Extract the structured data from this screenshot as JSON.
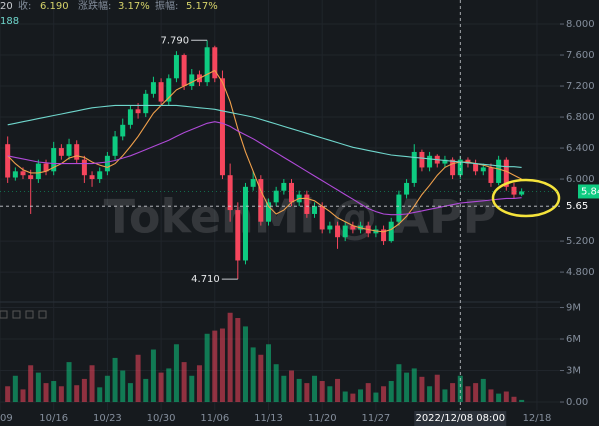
{
  "chart_data": {
    "type": "candlestick",
    "header": [
      "20",
      "收:",
      "6.190",
      "涨跌幅:",
      "3.17%",
      "振幅:",
      "5.17%"
    ],
    "subheader": "188",
    "watermark": "TokenMi @ APP",
    "up_color": "#0ecb81",
    "down_color": "#f6465d",
    "grid": true,
    "xlim": [
      0,
      73
    ],
    "xticks": [
      {
        "value": 0,
        "label": "09"
      },
      {
        "value": 7,
        "label": "10/16"
      },
      {
        "value": 14,
        "label": "10/23"
      },
      {
        "value": 21,
        "label": "10/30"
      },
      {
        "value": 28,
        "label": "11/06"
      },
      {
        "value": 35,
        "label": "11/13"
      },
      {
        "value": 42,
        "label": "11/20"
      },
      {
        "value": 49,
        "label": "11/27"
      },
      {
        "value": 70,
        "label": "12/18"
      }
    ],
    "ylim": [
      4.44,
      8.31
    ],
    "yticks": [
      {
        "value": 8,
        "label": "8.000"
      },
      {
        "value": 7.6,
        "label": "7.600"
      },
      {
        "value": 7.2,
        "label": "7.200"
      },
      {
        "value": 6.8,
        "label": "6.800"
      },
      {
        "value": 6.4,
        "label": "6.400"
      },
      {
        "value": 6,
        "label": "6.000"
      },
      {
        "value": 5.2,
        "label": "5.200"
      },
      {
        "value": 4.8,
        "label": "4.800"
      }
    ],
    "y2lim": [
      -0.76,
      9.24
    ],
    "y2ticks": [
      {
        "value": 9,
        "label": "9M"
      },
      {
        "value": 6,
        "label": "6M"
      },
      {
        "value": 3,
        "label": "3M"
      },
      {
        "value": 0,
        "label": "0.00"
      }
    ],
    "x": [
      1,
      2,
      3,
      4,
      5,
      6,
      7,
      8,
      9,
      10,
      11,
      12,
      13,
      14,
      15,
      16,
      17,
      18,
      19,
      20,
      21,
      22,
      23,
      24,
      25,
      26,
      27,
      28,
      29,
      30,
      31,
      32,
      33,
      34,
      35,
      36,
      37,
      38,
      39,
      40,
      41,
      42,
      43,
      44,
      45,
      46,
      47,
      48,
      49,
      50,
      51,
      52,
      53,
      54,
      55,
      56,
      57,
      58,
      59,
      60,
      61,
      62,
      63,
      64,
      65,
      66,
      67,
      68
    ],
    "open": [
      6.45,
      6.02,
      6.1,
      6.05,
      6.0,
      6.2,
      6.1,
      6.4,
      6.3,
      6.45,
      6.25,
      6.05,
      6.0,
      6.1,
      6.3,
      6.55,
      6.7,
      6.9,
      6.85,
      7.1,
      7.25,
      7.0,
      7.3,
      7.6,
      7.2,
      7.35,
      7.25,
      7.7,
      7.3,
      6.05,
      5.6,
      4.95,
      5.9,
      6.0,
      5.45,
      5.7,
      5.85,
      5.95,
      5.7,
      5.8,
      5.55,
      5.65,
      5.35,
      5.4,
      5.25,
      5.4,
      5.35,
      5.4,
      5.3,
      5.35,
      5.2,
      5.45,
      5.8,
      5.95,
      6.35,
      6.15,
      6.3,
      6.2,
      6.25,
      6.05,
      6.25,
      6.2,
      6.1,
      6.15,
      5.95,
      6.25,
      5.9,
      5.8
    ],
    "high": [
      6.55,
      6.15,
      6.15,
      6.12,
      6.25,
      6.25,
      6.48,
      6.45,
      6.52,
      6.5,
      6.3,
      6.1,
      6.15,
      6.35,
      6.62,
      6.78,
      6.95,
      6.98,
      7.15,
      7.32,
      7.3,
      7.35,
      7.65,
      7.62,
      7.42,
      7.4,
      7.79,
      7.72,
      7.4,
      6.2,
      5.7,
      5.95,
      6.1,
      6.05,
      5.75,
      5.9,
      6.0,
      6.0,
      5.85,
      5.85,
      5.7,
      5.7,
      5.45,
      5.45,
      5.45,
      5.45,
      5.45,
      5.45,
      5.4,
      5.4,
      5.5,
      5.85,
      6.0,
      6.45,
      6.38,
      6.35,
      6.32,
      6.3,
      6.28,
      6.3,
      6.28,
      6.25,
      6.2,
      6.2,
      6.3,
      6.28,
      5.95,
      5.88
    ],
    "low": [
      5.95,
      5.98,
      6.0,
      5.55,
      5.95,
      6.05,
      6.05,
      6.25,
      6.25,
      6.2,
      5.95,
      5.9,
      5.95,
      6.05,
      6.25,
      6.5,
      6.65,
      6.78,
      6.8,
      7.05,
      6.95,
      6.95,
      7.25,
      7.15,
      7.15,
      7.2,
      7.2,
      7.25,
      6.0,
      5.45,
      4.71,
      4.9,
      5.85,
      5.4,
      5.4,
      5.65,
      5.8,
      5.65,
      5.65,
      5.5,
      5.5,
      5.3,
      5.3,
      5.1,
      5.2,
      5.3,
      5.3,
      5.25,
      5.25,
      5.15,
      5.18,
      5.4,
      5.75,
      5.9,
      6.1,
      6.1,
      6.15,
      6.15,
      6.0,
      6.0,
      6.15,
      6.05,
      6.05,
      5.9,
      5.92,
      5.85,
      5.75,
      5.78
    ],
    "close": [
      6.02,
      6.1,
      6.05,
      6.0,
      6.2,
      6.1,
      6.4,
      6.3,
      6.45,
      6.25,
      6.05,
      6.0,
      6.1,
      6.3,
      6.55,
      6.7,
      6.9,
      6.85,
      7.1,
      7.25,
      7.0,
      7.3,
      7.6,
      7.2,
      7.35,
      7.25,
      7.7,
      7.3,
      6.05,
      5.6,
      4.95,
      5.9,
      6.0,
      5.45,
      5.7,
      5.85,
      5.95,
      5.7,
      5.8,
      5.55,
      5.65,
      5.35,
      5.4,
      5.25,
      5.4,
      5.35,
      5.4,
      5.3,
      5.35,
      5.2,
      5.45,
      5.8,
      5.95,
      6.35,
      6.15,
      6.3,
      6.2,
      6.25,
      6.05,
      6.25,
      6.2,
      6.1,
      6.15,
      5.95,
      6.25,
      5.9,
      5.8,
      5.84
    ],
    "volume": [
      1.5,
      2.5,
      1.2,
      3.5,
      2.8,
      1.8,
      2.0,
      1.5,
      3.8,
      1.6,
      2.2,
      3.5,
      1.4,
      2.5,
      4.2,
      3.0,
      1.8,
      4.5,
      2.2,
      5.0,
      2.8,
      3.2,
      5.5,
      3.8,
      2.5,
      3.5,
      6.5,
      6.8,
      7.0,
      8.5,
      8.0,
      7.2,
      5.2,
      4.5,
      5.5,
      3.6,
      2.5,
      3.0,
      2.2,
      1.8,
      2.5,
      2.0,
      1.5,
      2.2,
      1.0,
      0.8,
      1.2,
      1.8,
      0.9,
      1.5,
      2.0,
      3.6,
      2.8,
      3.2,
      2.4,
      1.5,
      2.6,
      1.2,
      1.8,
      2.5,
      1.5,
      1.8,
      2.2,
      1.2,
      0.8,
      1.0,
      0.5,
      0.2
    ],
    "lines": [
      {
        "color": "#f0a04b",
        "values": [
          6.3,
          6.2,
          6.12,
          6.08,
          6.08,
          6.1,
          6.15,
          6.2,
          6.27,
          6.3,
          6.28,
          6.22,
          6.18,
          6.15,
          6.2,
          6.3,
          6.42,
          6.55,
          6.7,
          6.85,
          6.95,
          7.05,
          7.15,
          7.2,
          7.25,
          7.3,
          7.35,
          7.4,
          7.25,
          7.0,
          6.65,
          6.35,
          6.1,
          5.85,
          5.65,
          5.55,
          5.6,
          5.7,
          5.75,
          5.75,
          5.72,
          5.65,
          5.58,
          5.5,
          5.45,
          5.4,
          5.37,
          5.35,
          5.33,
          5.32,
          5.35,
          5.42,
          5.52,
          5.65,
          5.8,
          5.92,
          6.05,
          6.15,
          6.2,
          6.22,
          6.22,
          6.2,
          6.18,
          6.15,
          6.13,
          6.1,
          6.05,
          6.0
        ]
      },
      {
        "color": "#b04ad8",
        "values": [
          6.3,
          6.28,
          6.26,
          6.24,
          6.22,
          6.21,
          6.2,
          6.2,
          6.2,
          6.2,
          6.2,
          6.2,
          6.21,
          6.22,
          6.24,
          6.27,
          6.3,
          6.34,
          6.38,
          6.42,
          6.46,
          6.5,
          6.55,
          6.6,
          6.64,
          6.68,
          6.72,
          6.74,
          6.72,
          6.68,
          6.62,
          6.57,
          6.52,
          6.46,
          6.4,
          6.34,
          6.28,
          6.22,
          6.16,
          6.1,
          6.04,
          5.98,
          5.92,
          5.86,
          5.8,
          5.74,
          5.68,
          5.62,
          5.58,
          5.55,
          5.54,
          5.54,
          5.55,
          5.57,
          5.59,
          5.61,
          5.63,
          5.65,
          5.67,
          5.69,
          5.7,
          5.71,
          5.72,
          5.73,
          5.74,
          5.75,
          5.75,
          5.76
        ]
      },
      {
        "color": "#6fd6cc",
        "values": [
          6.7,
          6.72,
          6.74,
          6.76,
          6.78,
          6.8,
          6.82,
          6.84,
          6.86,
          6.88,
          6.9,
          6.92,
          6.93,
          6.94,
          6.95,
          6.95,
          6.95,
          6.95,
          6.95,
          6.95,
          6.95,
          6.95,
          6.95,
          6.94,
          6.93,
          6.92,
          6.91,
          6.9,
          6.88,
          6.86,
          6.84,
          6.82,
          6.8,
          6.77,
          6.74,
          6.71,
          6.68,
          6.65,
          6.62,
          6.59,
          6.56,
          6.53,
          6.5,
          6.47,
          6.44,
          6.41,
          6.39,
          6.37,
          6.35,
          6.33,
          6.31,
          6.3,
          6.29,
          6.28,
          6.27,
          6.26,
          6.25,
          6.24,
          6.23,
          6.22,
          6.21,
          6.2,
          6.19,
          6.18,
          6.17,
          6.16,
          6.16,
          6.15
        ]
      }
    ],
    "high_label": {
      "x": 27,
      "value": 7.79,
      "label": "7.790"
    },
    "low_label": {
      "x": 31,
      "value": 4.71,
      "label": "4.710"
    },
    "last_price": {
      "value": 5.84,
      "label": "5.84"
    },
    "crosshair": {
      "x": 60,
      "x_label": "2022/12/08 08:00",
      "value": 5.65,
      "label": "5.65"
    }
  }
}
